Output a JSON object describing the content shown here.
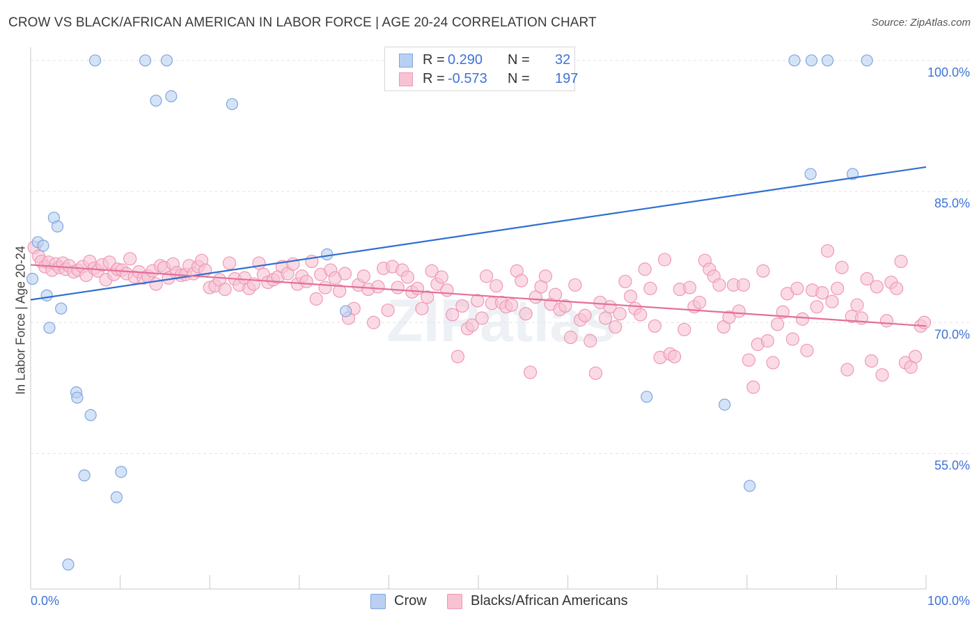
{
  "title": "CROW VS BLACK/AFRICAN AMERICAN IN LABOR FORCE | AGE 20-24 CORRELATION CHART",
  "source": "Source: ZipAtlas.com",
  "watermark": "ZIPatlas",
  "colors": {
    "crow_fill": "#b9d0f2",
    "crow_stroke": "#7ea5e0",
    "crow_line": "#2f6fd0",
    "black_fill": "#f7c3d3",
    "black_stroke": "#ef98b4",
    "black_line": "#e46e98",
    "tick_label": "#3d72d8",
    "grid": "#e3e3e3"
  },
  "legend": {
    "rows": [
      {
        "r_label": "R =",
        "r_value": "0.290",
        "n_label": "N =",
        "n_value": "32"
      },
      {
        "r_label": "R =",
        "r_value": "-0.573",
        "n_label": "N =",
        "n_value": "197"
      }
    ]
  },
  "bottom_legend": [
    "Crow",
    "Blacks/African Americans"
  ],
  "chart_data": {
    "type": "scatter",
    "title": "CROW VS BLACK/AFRICAN AMERICAN IN LABOR FORCE | AGE 20-24 CORRELATION CHART",
    "xlabel": "",
    "ylabel": "In Labor Force | Age 20-24",
    "xlim": [
      0,
      100
    ],
    "ylim": [
      39.5,
      101.5
    ],
    "x_tick_labels": [
      "0.0%",
      "100.0%"
    ],
    "y_ticks": [
      55,
      70,
      85,
      100
    ],
    "y_tick_labels": [
      "55.0%",
      "70.0%",
      "85.0%",
      "100.0%"
    ],
    "grid": "horizontal dashed",
    "legend_position": "top-center",
    "series": [
      {
        "name": "Crow",
        "r": 0.29,
        "n": 32,
        "trend": {
          "x": [
            0,
            100
          ],
          "y": [
            72.6,
            87.8
          ]
        },
        "points": [
          [
            0.2,
            75.0
          ],
          [
            0.8,
            79.2
          ],
          [
            1.4,
            78.8
          ],
          [
            1.8,
            73.1
          ],
          [
            2.1,
            69.4
          ],
          [
            2.6,
            82.0
          ],
          [
            3.0,
            81.0
          ],
          [
            3.4,
            71.6
          ],
          [
            4.2,
            42.3
          ],
          [
            5.1,
            62.0
          ],
          [
            5.2,
            61.4
          ],
          [
            6.7,
            59.4
          ],
          [
            7.2,
            100.0
          ],
          [
            6.0,
            52.5
          ],
          [
            9.6,
            50.0
          ],
          [
            10.1,
            52.9
          ],
          [
            12.8,
            100.0
          ],
          [
            14.0,
            95.4
          ],
          [
            15.2,
            100.0
          ],
          [
            15.7,
            95.9
          ],
          [
            22.5,
            95.0
          ],
          [
            33.1,
            77.8
          ],
          [
            35.2,
            71.3
          ],
          [
            68.8,
            61.5
          ],
          [
            77.5,
            60.6
          ],
          [
            80.3,
            51.3
          ],
          [
            85.3,
            100.0
          ],
          [
            87.2,
            100.0
          ],
          [
            87.1,
            87.0
          ],
          [
            89.0,
            100.0
          ],
          [
            91.8,
            87.0
          ],
          [
            93.4,
            100.0
          ]
        ]
      },
      {
        "name": "Blacks/African Americans",
        "r": -0.573,
        "n": 197,
        "trend": {
          "x": [
            0,
            100
          ],
          "y": [
            76.6,
            69.6
          ]
        },
        "points": [
          [
            0.4,
            78.6
          ],
          [
            0.9,
            77.6
          ],
          [
            1.2,
            77.0
          ],
          [
            1.6,
            76.4
          ],
          [
            2.0,
            76.9
          ],
          [
            2.4,
            76.0
          ],
          [
            2.8,
            76.7
          ],
          [
            3.2,
            76.3
          ],
          [
            3.6,
            76.8
          ],
          [
            3.9,
            76.1
          ],
          [
            4.3,
            76.5
          ],
          [
            4.8,
            75.8
          ],
          [
            5.3,
            76.0
          ],
          [
            5.8,
            76.4
          ],
          [
            6.2,
            75.4
          ],
          [
            6.6,
            77.0
          ],
          [
            7.1,
            76.2
          ],
          [
            7.5,
            75.9
          ],
          [
            8.0,
            76.6
          ],
          [
            8.4,
            74.9
          ],
          [
            8.8,
            76.9
          ],
          [
            9.3,
            75.5
          ],
          [
            9.7,
            76.1
          ],
          [
            10.2,
            76.0
          ],
          [
            10.7,
            75.6
          ],
          [
            11.1,
            77.3
          ],
          [
            11.6,
            75.2
          ],
          [
            12.1,
            75.8
          ],
          [
            12.6,
            75.1
          ],
          [
            13.1,
            75.3
          ],
          [
            13.6,
            75.9
          ],
          [
            14.0,
            74.4
          ],
          [
            14.5,
            76.5
          ],
          [
            14.9,
            76.3
          ],
          [
            15.4,
            75.1
          ],
          [
            15.9,
            76.7
          ],
          [
            16.3,
            75.7
          ],
          [
            16.8,
            75.4
          ],
          [
            17.3,
            75.5
          ],
          [
            17.7,
            76.5
          ],
          [
            18.2,
            75.6
          ],
          [
            18.7,
            76.4
          ],
          [
            19.1,
            77.1
          ],
          [
            19.5,
            76.0
          ],
          [
            20.0,
            74.0
          ],
          [
            20.6,
            74.2
          ],
          [
            21.1,
            74.9
          ],
          [
            21.7,
            73.8
          ],
          [
            22.2,
            76.8
          ],
          [
            22.8,
            75.0
          ],
          [
            23.3,
            74.3
          ],
          [
            23.9,
            75.1
          ],
          [
            24.4,
            73.9
          ],
          [
            24.9,
            74.4
          ],
          [
            25.5,
            76.8
          ],
          [
            26.0,
            75.5
          ],
          [
            26.5,
            74.6
          ],
          [
            27.1,
            74.9
          ],
          [
            27.6,
            75.2
          ],
          [
            28.1,
            76.4
          ],
          [
            28.7,
            75.6
          ],
          [
            29.3,
            76.7
          ],
          [
            29.8,
            74.4
          ],
          [
            30.3,
            75.3
          ],
          [
            30.8,
            74.7
          ],
          [
            31.4,
            77.0
          ],
          [
            31.9,
            72.7
          ],
          [
            32.4,
            75.5
          ],
          [
            32.9,
            74.0
          ],
          [
            33.5,
            76.0
          ],
          [
            34.0,
            75.1
          ],
          [
            34.5,
            73.6
          ],
          [
            35.1,
            75.6
          ],
          [
            35.5,
            70.5
          ],
          [
            36.1,
            71.6
          ],
          [
            36.6,
            74.3
          ],
          [
            37.2,
            75.3
          ],
          [
            37.7,
            73.8
          ],
          [
            38.3,
            70.0
          ],
          [
            38.8,
            74.1
          ],
          [
            39.4,
            76.2
          ],
          [
            39.9,
            71.4
          ],
          [
            40.4,
            76.4
          ],
          [
            41.0,
            74.0
          ],
          [
            41.5,
            76.0
          ],
          [
            42.1,
            75.2
          ],
          [
            42.6,
            73.5
          ],
          [
            43.2,
            73.9
          ],
          [
            43.7,
            71.6
          ],
          [
            44.3,
            72.9
          ],
          [
            44.8,
            75.9
          ],
          [
            45.4,
            74.4
          ],
          [
            45.9,
            75.2
          ],
          [
            46.5,
            73.7
          ],
          [
            47.1,
            70.9
          ],
          [
            47.7,
            66.1
          ],
          [
            48.2,
            71.9
          ],
          [
            48.8,
            69.3
          ],
          [
            49.3,
            69.7
          ],
          [
            49.9,
            72.5
          ],
          [
            50.4,
            70.5
          ],
          [
            50.9,
            75.3
          ],
          [
            51.5,
            72.2
          ],
          [
            52.0,
            74.2
          ],
          [
            52.6,
            72.3
          ],
          [
            53.1,
            71.8
          ],
          [
            53.7,
            72.0
          ],
          [
            54.3,
            75.9
          ],
          [
            54.8,
            74.8
          ],
          [
            55.3,
            71.0
          ],
          [
            55.8,
            64.3
          ],
          [
            56.4,
            72.9
          ],
          [
            57.0,
            74.1
          ],
          [
            57.5,
            75.3
          ],
          [
            58.1,
            72.1
          ],
          [
            58.6,
            73.2
          ],
          [
            59.1,
            71.5
          ],
          [
            59.7,
            71.9
          ],
          [
            60.3,
            68.3
          ],
          [
            60.8,
            74.3
          ],
          [
            61.4,
            70.3
          ],
          [
            61.9,
            70.8
          ],
          [
            62.5,
            67.9
          ],
          [
            63.1,
            64.2
          ],
          [
            63.6,
            72.3
          ],
          [
            64.2,
            70.5
          ],
          [
            64.7,
            71.8
          ],
          [
            65.3,
            69.5
          ],
          [
            65.8,
            71.0
          ],
          [
            66.4,
            74.7
          ],
          [
            67.0,
            73.0
          ],
          [
            67.5,
            71.6
          ],
          [
            68.1,
            70.9
          ],
          [
            68.6,
            76.1
          ],
          [
            69.2,
            73.9
          ],
          [
            69.7,
            69.6
          ],
          [
            70.3,
            66.0
          ],
          [
            70.8,
            77.2
          ],
          [
            71.4,
            66.4
          ],
          [
            71.9,
            66.1
          ],
          [
            72.5,
            73.8
          ],
          [
            73.0,
            69.2
          ],
          [
            73.6,
            74.0
          ],
          [
            74.1,
            71.8
          ],
          [
            74.7,
            72.3
          ],
          [
            75.3,
            77.1
          ],
          [
            75.8,
            76.1
          ],
          [
            76.3,
            75.3
          ],
          [
            76.9,
            74.3
          ],
          [
            77.4,
            69.5
          ],
          [
            78.0,
            70.6
          ],
          [
            78.5,
            74.3
          ],
          [
            79.1,
            71.3
          ],
          [
            79.6,
            74.3
          ],
          [
            80.2,
            65.7
          ],
          [
            80.7,
            62.6
          ],
          [
            81.2,
            67.5
          ],
          [
            81.8,
            75.9
          ],
          [
            82.3,
            67.9
          ],
          [
            82.9,
            65.4
          ],
          [
            83.4,
            69.8
          ],
          [
            84.0,
            71.2
          ],
          [
            84.5,
            73.3
          ],
          [
            85.1,
            68.1
          ],
          [
            85.6,
            73.9
          ],
          [
            86.2,
            70.4
          ],
          [
            86.7,
            66.8
          ],
          [
            87.3,
            73.7
          ],
          [
            87.8,
            71.8
          ],
          [
            88.4,
            73.4
          ],
          [
            89.0,
            78.2
          ],
          [
            89.5,
            72.4
          ],
          [
            90.1,
            73.9
          ],
          [
            90.6,
            76.3
          ],
          [
            91.2,
            64.6
          ],
          [
            91.7,
            70.7
          ],
          [
            92.3,
            72.0
          ],
          [
            92.8,
            70.5
          ],
          [
            93.4,
            75.0
          ],
          [
            93.9,
            65.6
          ],
          [
            94.5,
            74.1
          ],
          [
            95.1,
            64.0
          ],
          [
            95.6,
            70.2
          ],
          [
            96.1,
            74.6
          ],
          [
            96.7,
            73.9
          ],
          [
            97.2,
            77.0
          ],
          [
            97.7,
            65.4
          ],
          [
            98.3,
            64.9
          ],
          [
            98.8,
            66.1
          ],
          [
            99.4,
            69.6
          ],
          [
            99.8,
            70.0
          ]
        ]
      }
    ]
  }
}
